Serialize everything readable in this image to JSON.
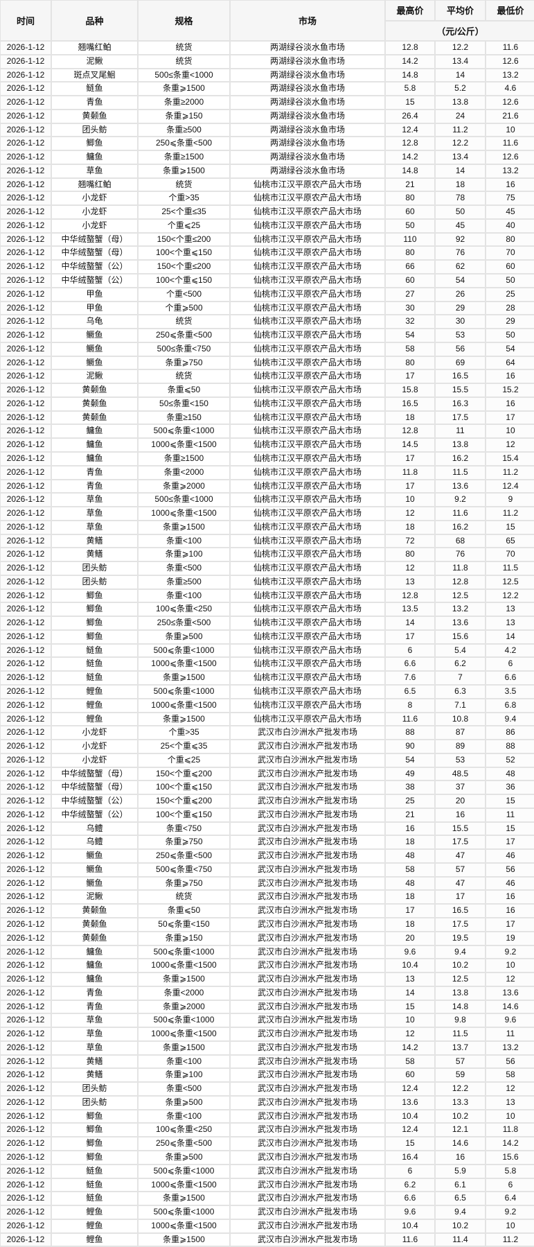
{
  "header": {
    "date": "时间",
    "variety": "品种",
    "spec": "规格",
    "market": "市场",
    "high": "最高价",
    "avg": "平均价",
    "low": "最低价",
    "unit": "（元/公斤）"
  },
  "rows": [
    [
      "2026-1-12",
      "翘嘴红鲌",
      "统货",
      "两湖绿谷淡水鱼市场",
      "12.8",
      "12.2",
      "11.6"
    ],
    [
      "2026-1-12",
      "泥鳅",
      "统货",
      "两湖绿谷淡水鱼市场",
      "14.2",
      "13.4",
      "12.6"
    ],
    [
      "2026-1-12",
      "斑点叉尾鮰",
      "500≤条重<1000",
      "两湖绿谷淡水鱼市场",
      "14.8",
      "14",
      "13.2"
    ],
    [
      "2026-1-12",
      "鲢鱼",
      "条重⩾1500",
      "两湖绿谷淡水鱼市场",
      "5.8",
      "5.2",
      "4.6"
    ],
    [
      "2026-1-12",
      "青鱼",
      "条重≥2000",
      "两湖绿谷淡水鱼市场",
      "15",
      "13.8",
      "12.6"
    ],
    [
      "2026-1-12",
      "黄颡鱼",
      "条重⩾150",
      "两湖绿谷淡水鱼市场",
      "26.4",
      "24",
      "21.6"
    ],
    [
      "2026-1-12",
      "团头鲂",
      "条重≥500",
      "两湖绿谷淡水鱼市场",
      "12.4",
      "11.2",
      "10"
    ],
    [
      "2026-1-12",
      "鲫鱼",
      "250⩽条重<500",
      "两湖绿谷淡水鱼市场",
      "12.8",
      "12.2",
      "11.6"
    ],
    [
      "2026-1-12",
      "鳙鱼",
      "条重≥1500",
      "两湖绿谷淡水鱼市场",
      "14.2",
      "13.4",
      "12.6"
    ],
    [
      "2026-1-12",
      "草鱼",
      "条重⩾1500",
      "两湖绿谷淡水鱼市场",
      "14.8",
      "14",
      "13.2"
    ],
    [
      "2026-1-12",
      "翘嘴红鲌",
      "统货",
      "仙桃市江汉平原农产品大市场",
      "21",
      "18",
      "16"
    ],
    [
      "2026-1-12",
      "小龙虾",
      "个重>35",
      "仙桃市江汉平原农产品大市场",
      "80",
      "78",
      "75"
    ],
    [
      "2026-1-12",
      "小龙虾",
      "25<个重≤35",
      "仙桃市江汉平原农产品大市场",
      "60",
      "50",
      "45"
    ],
    [
      "2026-1-12",
      "小龙虾",
      "个重⩽25",
      "仙桃市江汉平原农产品大市场",
      "50",
      "45",
      "40"
    ],
    [
      "2026-1-12",
      "中华绒螯蟹（母）",
      "150<个重≤200",
      "仙桃市江汉平原农产品大市场",
      "110",
      "92",
      "80"
    ],
    [
      "2026-1-12",
      "中华绒螯蟹（母）",
      "100<个重⩽150",
      "仙桃市江汉平原农产品大市场",
      "80",
      "76",
      "70"
    ],
    [
      "2026-1-12",
      "中华绒螯蟹（公）",
      "150<个重≤200",
      "仙桃市江汉平原农产品大市场",
      "66",
      "62",
      "60"
    ],
    [
      "2026-1-12",
      "中华绒螯蟹（公）",
      "100<个重⩽150",
      "仙桃市江汉平原农产品大市场",
      "60",
      "54",
      "50"
    ],
    [
      "2026-1-12",
      "甲鱼",
      "个重<500",
      "仙桃市江汉平原农产品大市场",
      "27",
      "26",
      "25"
    ],
    [
      "2026-1-12",
      "甲鱼",
      "个重⩾500",
      "仙桃市江汉平原农产品大市场",
      "30",
      "29",
      "28"
    ],
    [
      "2026-1-12",
      "乌龟",
      "统货",
      "仙桃市江汉平原农产品大市场",
      "32",
      "30",
      "29"
    ],
    [
      "2026-1-12",
      "鳜鱼",
      "250⩽条重<500",
      "仙桃市江汉平原农产品大市场",
      "54",
      "53",
      "50"
    ],
    [
      "2026-1-12",
      "鳜鱼",
      "500≤条重<750",
      "仙桃市江汉平原农产品大市场",
      "58",
      "56",
      "54"
    ],
    [
      "2026-1-12",
      "鳜鱼",
      "条重⩾750",
      "仙桃市江汉平原农产品大市场",
      "80",
      "69",
      "64"
    ],
    [
      "2026-1-12",
      "泥鳅",
      "统货",
      "仙桃市江汉平原农产品大市场",
      "17",
      "16.5",
      "16"
    ],
    [
      "2026-1-12",
      "黄颡鱼",
      "条重⩽50",
      "仙桃市江汉平原农产品大市场",
      "15.8",
      "15.5",
      "15.2"
    ],
    [
      "2026-1-12",
      "黄颡鱼",
      "50≤条重<150",
      "仙桃市江汉平原农产品大市场",
      "16.5",
      "16.3",
      "16"
    ],
    [
      "2026-1-12",
      "黄颡鱼",
      "条重≥150",
      "仙桃市江汉平原农产品大市场",
      "18",
      "17.5",
      "17"
    ],
    [
      "2026-1-12",
      "鳙鱼",
      "500⩽条重<1000",
      "仙桃市江汉平原农产品大市场",
      "12.8",
      "11",
      "10"
    ],
    [
      "2026-1-12",
      "鳙鱼",
      "1000⩽条重<1500",
      "仙桃市江汉平原农产品大市场",
      "14.5",
      "13.8",
      "12"
    ],
    [
      "2026-1-12",
      "鳙鱼",
      "条重≥1500",
      "仙桃市江汉平原农产品大市场",
      "17",
      "16.2",
      "15.4"
    ],
    [
      "2026-1-12",
      "青鱼",
      "条重<2000",
      "仙桃市江汉平原农产品大市场",
      "11.8",
      "11.5",
      "11.2"
    ],
    [
      "2026-1-12",
      "青鱼",
      "条重⩾2000",
      "仙桃市江汉平原农产品大市场",
      "17",
      "13.6",
      "12.4"
    ],
    [
      "2026-1-12",
      "草鱼",
      "500≤条重<1000",
      "仙桃市江汉平原农产品大市场",
      "10",
      "9.2",
      "9"
    ],
    [
      "2026-1-12",
      "草鱼",
      "1000⩽条重<1500",
      "仙桃市江汉平原农产品大市场",
      "12",
      "11.6",
      "11.2"
    ],
    [
      "2026-1-12",
      "草鱼",
      "条重⩾1500",
      "仙桃市江汉平原农产品大市场",
      "18",
      "16.2",
      "15"
    ],
    [
      "2026-1-12",
      "黄鳝",
      "条重<100",
      "仙桃市江汉平原农产品大市场",
      "72",
      "68",
      "65"
    ],
    [
      "2026-1-12",
      "黄鳝",
      "条重⩾100",
      "仙桃市江汉平原农产品大市场",
      "80",
      "76",
      "70"
    ],
    [
      "2026-1-12",
      "团头鲂",
      "条重<500",
      "仙桃市江汉平原农产品大市场",
      "12",
      "11.8",
      "11.5"
    ],
    [
      "2026-1-12",
      "团头鲂",
      "条重≥500",
      "仙桃市江汉平原农产品大市场",
      "13",
      "12.8",
      "12.5"
    ],
    [
      "2026-1-12",
      "鲫鱼",
      "条重<100",
      "仙桃市江汉平原农产品大市场",
      "12.8",
      "12.5",
      "12.2"
    ],
    [
      "2026-1-12",
      "鲫鱼",
      "100⩽条重<250",
      "仙桃市江汉平原农产品大市场",
      "13.5",
      "13.2",
      "13"
    ],
    [
      "2026-1-12",
      "鲫鱼",
      "250≤条重<500",
      "仙桃市江汉平原农产品大市场",
      "14",
      "13.6",
      "13"
    ],
    [
      "2026-1-12",
      "鲫鱼",
      "条重⩾500",
      "仙桃市江汉平原农产品大市场",
      "17",
      "15.6",
      "14"
    ],
    [
      "2026-1-12",
      "鲢鱼",
      "500⩽条重<1000",
      "仙桃市江汉平原农产品大市场",
      "6",
      "5.4",
      "4.2"
    ],
    [
      "2026-1-12",
      "鲢鱼",
      "1000⩽条重<1500",
      "仙桃市江汉平原农产品大市场",
      "6.6",
      "6.2",
      "6"
    ],
    [
      "2026-1-12",
      "鲢鱼",
      "条重⩾1500",
      "仙桃市江汉平原农产品大市场",
      "7.6",
      "7",
      "6.6"
    ],
    [
      "2026-1-12",
      "鲤鱼",
      "500⩽条重<1000",
      "仙桃市江汉平原农产品大市场",
      "6.5",
      "6.3",
      "3.5"
    ],
    [
      "2026-1-12",
      "鲤鱼",
      "1000⩽条重<1500",
      "仙桃市江汉平原农产品大市场",
      "8",
      "7.1",
      "6.8"
    ],
    [
      "2026-1-12",
      "鲤鱼",
      "条重⩾1500",
      "仙桃市江汉平原农产品大市场",
      "11.6",
      "10.8",
      "9.4"
    ],
    [
      "2026-1-12",
      "小龙虾",
      "个重>35",
      "武汉市白沙洲水产批发市场",
      "88",
      "87",
      "86"
    ],
    [
      "2026-1-12",
      "小龙虾",
      "25<个重⩽35",
      "武汉市白沙洲水产批发市场",
      "90",
      "89",
      "88"
    ],
    [
      "2026-1-12",
      "小龙虾",
      "个重⩽25",
      "武汉市白沙洲水产批发市场",
      "54",
      "53",
      "52"
    ],
    [
      "2026-1-12",
      "中华绒螯蟹（母）",
      "150<个重⩽200",
      "武汉市白沙洲水产批发市场",
      "49",
      "48.5",
      "48"
    ],
    [
      "2026-1-12",
      "中华绒螯蟹（母）",
      "100<个重⩽150",
      "武汉市白沙洲水产批发市场",
      "38",
      "37",
      "36"
    ],
    [
      "2026-1-12",
      "中华绒螯蟹（公）",
      "150<个重⩽200",
      "武汉市白沙洲水产批发市场",
      "25",
      "20",
      "15"
    ],
    [
      "2026-1-12",
      "中华绒螯蟹（公）",
      "100<个重⩽150",
      "武汉市白沙洲水产批发市场",
      "21",
      "16",
      "11"
    ],
    [
      "2026-1-12",
      "乌鳢",
      "条重<750",
      "武汉市白沙洲水产批发市场",
      "16",
      "15.5",
      "15"
    ],
    [
      "2026-1-12",
      "乌鳢",
      "条重⩾750",
      "武汉市白沙洲水产批发市场",
      "18",
      "17.5",
      "17"
    ],
    [
      "2026-1-12",
      "鳜鱼",
      "250⩽条重<500",
      "武汉市白沙洲水产批发市场",
      "48",
      "47",
      "46"
    ],
    [
      "2026-1-12",
      "鳜鱼",
      "500⩽条重<750",
      "武汉市白沙洲水产批发市场",
      "58",
      "57",
      "56"
    ],
    [
      "2026-1-12",
      "鳜鱼",
      "条重⩾750",
      "武汉市白沙洲水产批发市场",
      "48",
      "47",
      "46"
    ],
    [
      "2026-1-12",
      "泥鳅",
      "统货",
      "武汉市白沙洲水产批发市场",
      "18",
      "17",
      "16"
    ],
    [
      "2026-1-12",
      "黄颡鱼",
      "条重⩽50",
      "武汉市白沙洲水产批发市场",
      "17",
      "16.5",
      "16"
    ],
    [
      "2026-1-12",
      "黄颡鱼",
      "50⩽条重<150",
      "武汉市白沙洲水产批发市场",
      "18",
      "17.5",
      "17"
    ],
    [
      "2026-1-12",
      "黄颡鱼",
      "条重⩾150",
      "武汉市白沙洲水产批发市场",
      "20",
      "19.5",
      "19"
    ],
    [
      "2026-1-12",
      "鳙鱼",
      "500⩽条重<1000",
      "武汉市白沙洲水产批发市场",
      "9.6",
      "9.4",
      "9.2"
    ],
    [
      "2026-1-12",
      "鳙鱼",
      "1000⩽条重<1500",
      "武汉市白沙洲水产批发市场",
      "10.4",
      "10.2",
      "10"
    ],
    [
      "2026-1-12",
      "鳙鱼",
      "条重⩾1500",
      "武汉市白沙洲水产批发市场",
      "13",
      "12.5",
      "12"
    ],
    [
      "2026-1-12",
      "青鱼",
      "条重<2000",
      "武汉市白沙洲水产批发市场",
      "14",
      "13.8",
      "13.6"
    ],
    [
      "2026-1-12",
      "青鱼",
      "条重⩾2000",
      "武汉市白沙洲水产批发市场",
      "15",
      "14.8",
      "14.6"
    ],
    [
      "2026-1-12",
      "草鱼",
      "500⩽条重<1000",
      "武汉市白沙洲水产批发市场",
      "10",
      "9.8",
      "9.6"
    ],
    [
      "2026-1-12",
      "草鱼",
      "1000⩽条重<1500",
      "武汉市白沙洲水产批发市场",
      "12",
      "11.5",
      "11"
    ],
    [
      "2026-1-12",
      "草鱼",
      "条重⩾1500",
      "武汉市白沙洲水产批发市场",
      "14.2",
      "13.7",
      "13.2"
    ],
    [
      "2026-1-12",
      "黄鳝",
      "条重<100",
      "武汉市白沙洲水产批发市场",
      "58",
      "57",
      "56"
    ],
    [
      "2026-1-12",
      "黄鳝",
      "条重⩾100",
      "武汉市白沙洲水产批发市场",
      "60",
      "59",
      "58"
    ],
    [
      "2026-1-12",
      "团头鲂",
      "条重<500",
      "武汉市白沙洲水产批发市场",
      "12.4",
      "12.2",
      "12"
    ],
    [
      "2026-1-12",
      "团头鲂",
      "条重⩾500",
      "武汉市白沙洲水产批发市场",
      "13.6",
      "13.3",
      "13"
    ],
    [
      "2026-1-12",
      "鲫鱼",
      "条重<100",
      "武汉市白沙洲水产批发市场",
      "10.4",
      "10.2",
      "10"
    ],
    [
      "2026-1-12",
      "鲫鱼",
      "100⩽条重<250",
      "武汉市白沙洲水产批发市场",
      "12.4",
      "12.1",
      "11.8"
    ],
    [
      "2026-1-12",
      "鲫鱼",
      "250⩽条重<500",
      "武汉市白沙洲水产批发市场",
      "15",
      "14.6",
      "14.2"
    ],
    [
      "2026-1-12",
      "鲫鱼",
      "条重⩾500",
      "武汉市白沙洲水产批发市场",
      "16.4",
      "16",
      "15.6"
    ],
    [
      "2026-1-12",
      "鲢鱼",
      "500⩽条重<1000",
      "武汉市白沙洲水产批发市场",
      "6",
      "5.9",
      "5.8"
    ],
    [
      "2026-1-12",
      "鲢鱼",
      "1000⩽条重<1500",
      "武汉市白沙洲水产批发市场",
      "6.2",
      "6.1",
      "6"
    ],
    [
      "2026-1-12",
      "鲢鱼",
      "条重⩾1500",
      "武汉市白沙洲水产批发市场",
      "6.6",
      "6.5",
      "6.4"
    ],
    [
      "2026-1-12",
      "鲤鱼",
      "500⩽条重<1000",
      "武汉市白沙洲水产批发市场",
      "9.6",
      "9.4",
      "9.2"
    ],
    [
      "2026-1-12",
      "鲤鱼",
      "1000⩽条重<1500",
      "武汉市白沙洲水产批发市场",
      "10.4",
      "10.2",
      "10"
    ],
    [
      "2026-1-12",
      "鲤鱼",
      "条重⩾1500",
      "武汉市白沙洲水产批发市场",
      "11.6",
      "11.4",
      "11.2"
    ]
  ]
}
